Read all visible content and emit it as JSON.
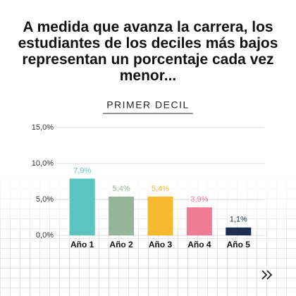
{
  "chart_data": {
    "type": "bar",
    "title": "A medida que avanza la carrera, los estudiantes de los deciles más bajos representan un porcentaje cada vez menor...",
    "subtitle": "PRIMER DECIL",
    "categories": [
      "Año 1",
      "Año 2",
      "Año 3",
      "Año 4",
      "Año 5"
    ],
    "values": [
      7.9,
      5.4,
      5.4,
      3.9,
      1.1
    ],
    "value_labels": [
      "7,9%",
      "5,4%",
      "5,4%",
      "3,9%",
      "1,1%"
    ],
    "colors": [
      "#5bc4c0",
      "#96b49a",
      "#f5b82e",
      "#ef7a93",
      "#1d2d4f"
    ],
    "ylim": [
      0,
      15
    ],
    "yticks": [
      {
        "value": 0,
        "label": "0,0%"
      },
      {
        "value": 5,
        "label": "5,0%"
      },
      {
        "value": 10,
        "label": "10,0%"
      },
      {
        "value": 15,
        "label": "15,0%"
      }
    ],
    "grid": true
  }
}
